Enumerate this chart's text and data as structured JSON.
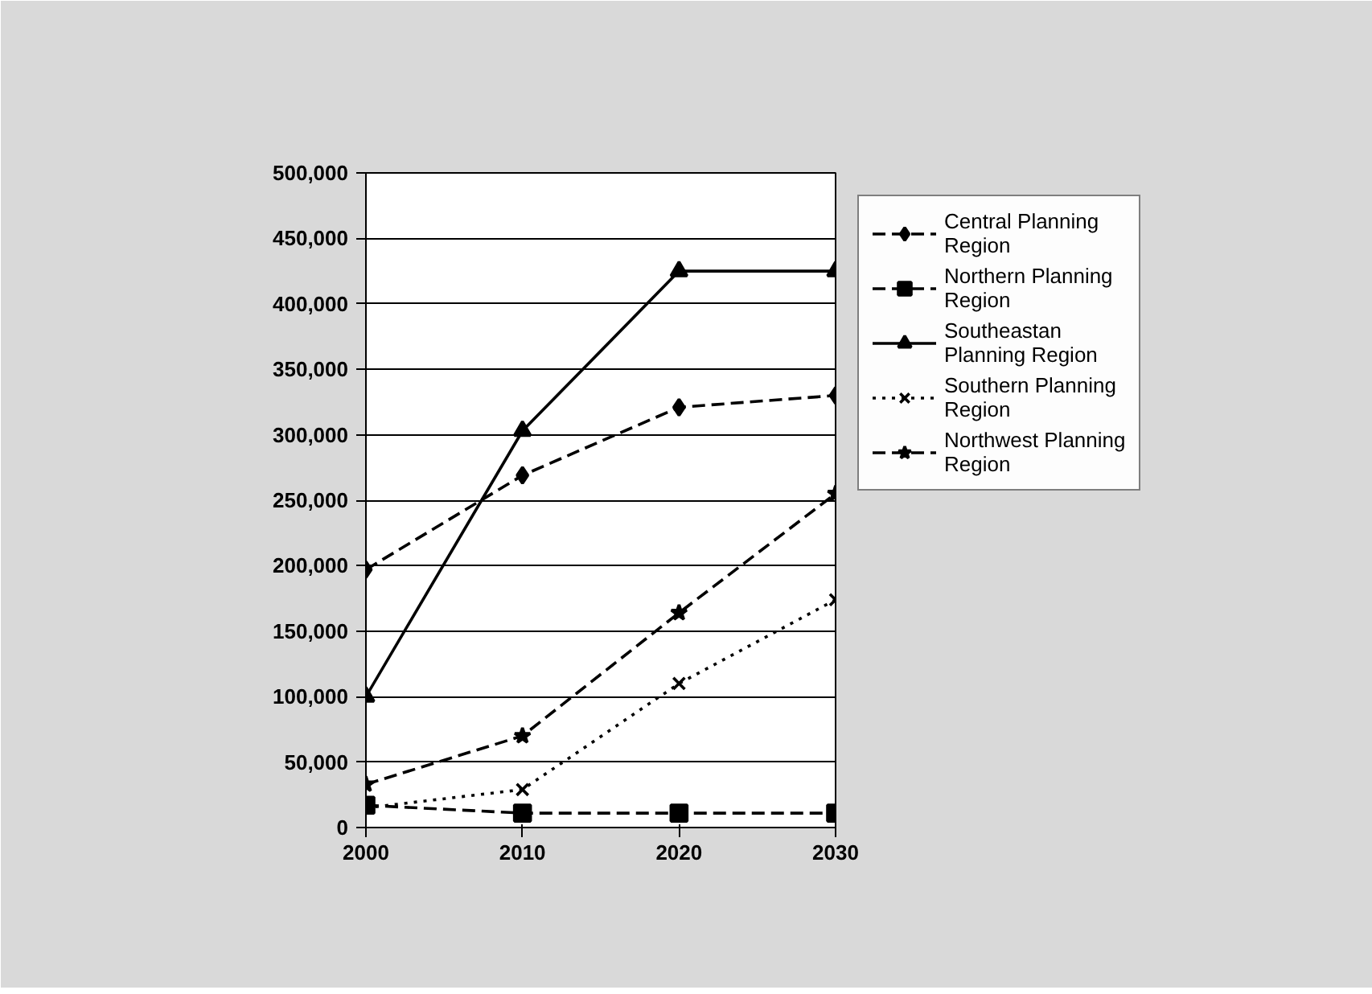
{
  "chart_data": {
    "type": "line",
    "x": [
      2000,
      2010,
      2020,
      2030
    ],
    "xlim": [
      2000,
      2030
    ],
    "xticks": [
      2000,
      2010,
      2020,
      2030
    ],
    "ylim": [
      0,
      500000
    ],
    "yticks": [
      {
        "value": 0,
        "label": "0"
      },
      {
        "value": 50000,
        "label": "50,000"
      },
      {
        "value": 100000,
        "label": "100,000"
      },
      {
        "value": 150000,
        "label": "150,000"
      },
      {
        "value": 200000,
        "label": "200,000"
      },
      {
        "value": 250000,
        "label": "250,000"
      },
      {
        "value": 300000,
        "label": "300,000"
      },
      {
        "value": 350000,
        "label": "350,000"
      },
      {
        "value": 400000,
        "label": "400,000"
      },
      {
        "value": 450000,
        "label": "450,000"
      },
      {
        "value": 500000,
        "label": "500,000"
      }
    ],
    "grid": "y",
    "legend": "right",
    "series": [
      {
        "name": "Central Planning Region",
        "color": "#000000",
        "marker": "diamond",
        "line_style": "dashed",
        "values": [
          197000,
          269000,
          321000,
          330000
        ]
      },
      {
        "name": "Northern Planning Region",
        "color": "#000000",
        "marker": "square",
        "line_style": "dashed",
        "values": [
          17000,
          11000,
          11000,
          11000
        ]
      },
      {
        "name": "Southeastan Planning Region",
        "color": "#000000",
        "marker": "triangle",
        "line_style": "solid",
        "values": [
          100000,
          303000,
          425000,
          425000
        ]
      },
      {
        "name": "Southern Planning Region",
        "color": "#000000",
        "marker": "cross",
        "line_style": "dotted",
        "values": [
          15000,
          29000,
          110000,
          174000
        ]
      },
      {
        "name": "Northwest Planning Region",
        "color": "#000000",
        "marker": "star",
        "line_style": "dashed",
        "values": [
          33000,
          70000,
          164000,
          255000
        ]
      }
    ]
  }
}
